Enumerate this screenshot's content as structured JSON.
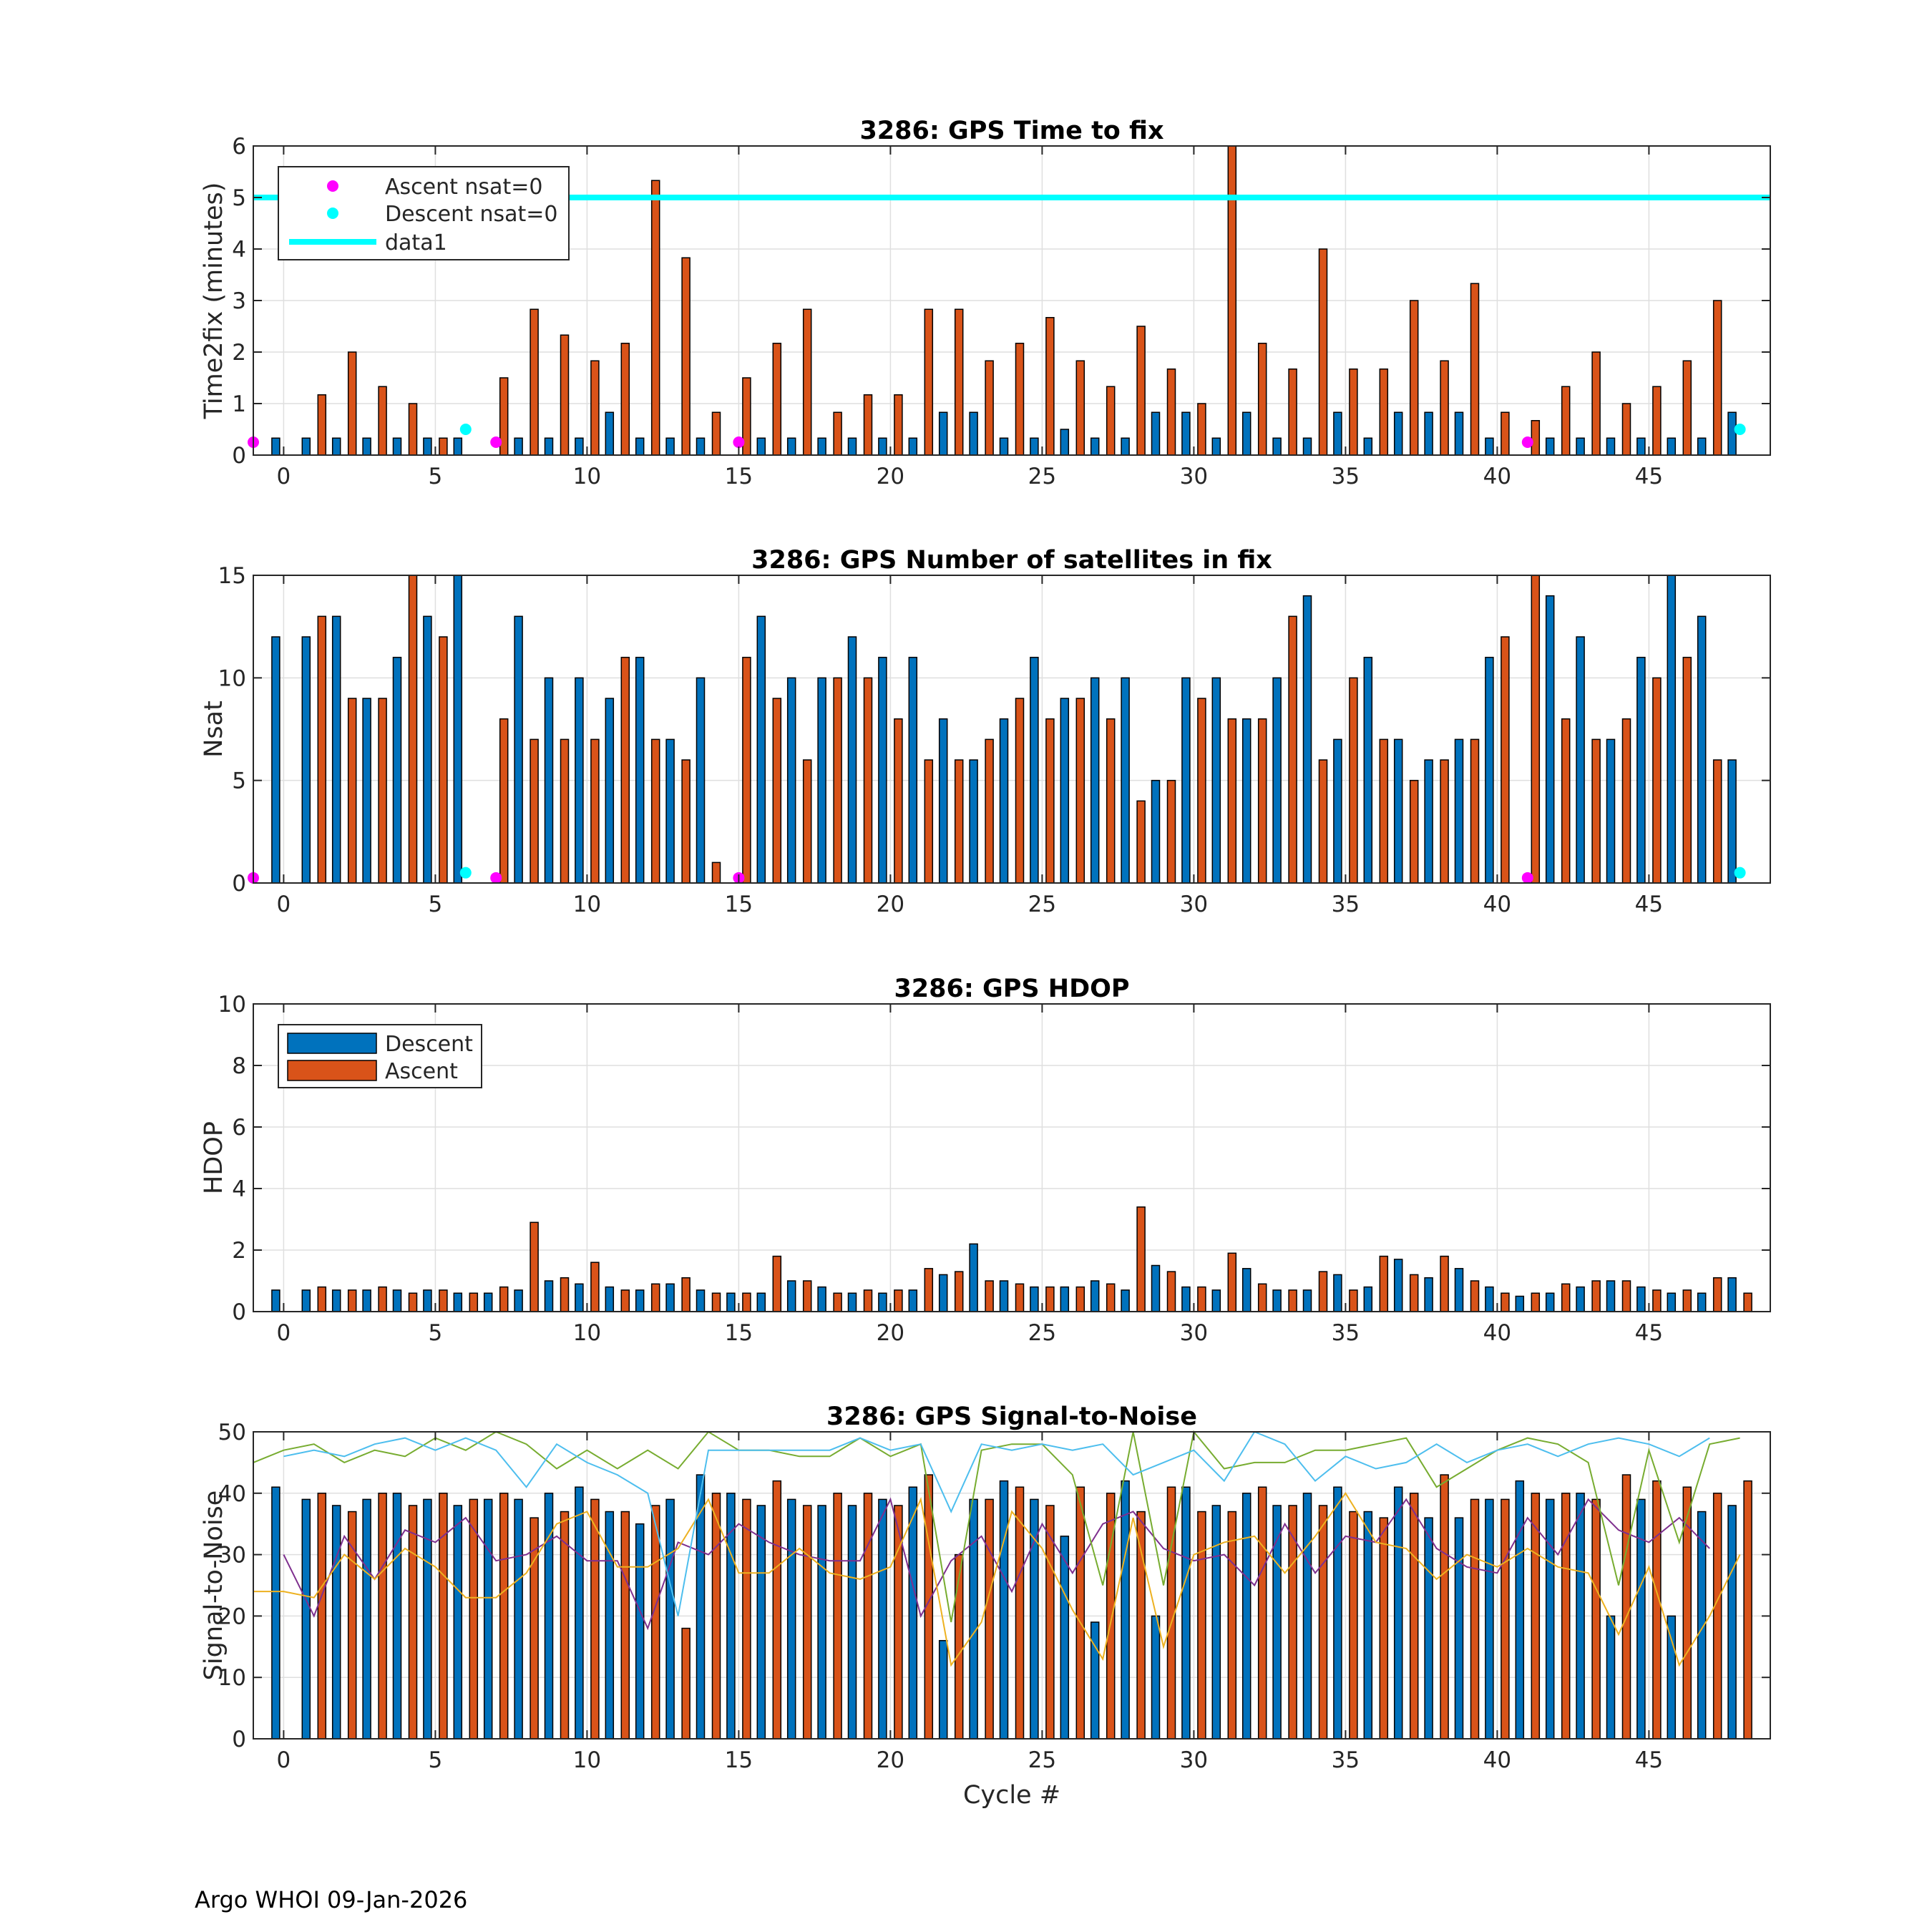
{
  "colors": {
    "descent": "#0072BD",
    "ascent": "#D95319",
    "ascent_marker": "#FF00FF",
    "descent_marker": "#00FFFF",
    "ref_line": "#00FFFF",
    "snr_series": [
      "#7E2F8E",
      "#EDB120",
      "#77AC30",
      "#4DBEEE"
    ]
  },
  "x_axis": {
    "xlim": [
      -1,
      49
    ],
    "ticks": [
      0,
      5,
      10,
      15,
      20,
      25,
      30,
      35,
      40,
      45
    ],
    "tick_labels": [
      "0",
      "5",
      "10",
      "15",
      "20",
      "25",
      "30",
      "35",
      "40",
      "45"
    ],
    "xlabel": "Cycle #"
  },
  "chart_data": [
    {
      "type": "bar",
      "title": "3286: GPS Time to fix",
      "ylabel": "Time2fix (minutes)",
      "ylim": [
        0,
        6
      ],
      "yticks": [
        0,
        1,
        2,
        3,
        4,
        5,
        6
      ],
      "ytick_labels": [
        "0",
        "1",
        "2",
        "3",
        "4",
        "5",
        "6"
      ],
      "series": [
        {
          "name": "Descent",
          "values": [
            0.33,
            0.33,
            0.33,
            0.33,
            0.33,
            0.33,
            0.33,
            null,
            0.33,
            0.33,
            0.33,
            0.83,
            0.33,
            0.33,
            0.33,
            null,
            0.33,
            0.33,
            0.33,
            0.33,
            0.33,
            0.33,
            0.83,
            0.83,
            0.33,
            0.33,
            0.5,
            0.33,
            0.33,
            0.83,
            0.83,
            0.33,
            0.83,
            0.33,
            0.33,
            0.83,
            0.33,
            0.83,
            0.83,
            0.83,
            0.33,
            null,
            0.33,
            0.33,
            0.33,
            0.33,
            0.33,
            0.33,
            0.83
          ]
        },
        {
          "name": "Ascent",
          "values": [
            null,
            1.17,
            2.0,
            1.33,
            1.0,
            0.33,
            null,
            1.5,
            2.83,
            2.33,
            1.83,
            2.17,
            5.33,
            3.83,
            0.83,
            1.5,
            2.17,
            2.83,
            0.83,
            1.17,
            1.17,
            2.83,
            2.83,
            1.83,
            2.17,
            2.67,
            1.83,
            1.33,
            2.5,
            1.67,
            1.0,
            6.0,
            2.17,
            1.67,
            4.0,
            1.67,
            1.67,
            3.0,
            1.83,
            3.33,
            0.83,
            0.67,
            1.33,
            2.0,
            1.0,
            1.33,
            1.83,
            3.0,
            null
          ]
        }
      ],
      "markers": [
        {
          "name": "Ascent nsat=0",
          "x": [
            -1,
            7,
            15,
            41
          ],
          "y": [
            0.25,
            0.25,
            0.25,
            0.25
          ]
        },
        {
          "name": "Descent nsat=0",
          "x": [
            6,
            48
          ],
          "y": [
            0.5,
            0.5
          ]
        }
      ],
      "hline": {
        "name": "data1",
        "y": 5
      },
      "legend": {
        "position": "top-left",
        "entries": [
          "Ascent nsat=0",
          "Descent nsat=0",
          "data1"
        ]
      }
    },
    {
      "type": "bar",
      "title": "3286: GPS Number of satellites in fix",
      "ylabel": "Nsat",
      "ylim": [
        0,
        15
      ],
      "yticks": [
        0,
        5,
        10,
        15
      ],
      "ytick_labels": [
        "0",
        "5",
        "10",
        "15"
      ],
      "series": [
        {
          "name": "Descent",
          "values": [
            12,
            12,
            13,
            9,
            11,
            13,
            15,
            null,
            13,
            10,
            10,
            9,
            11,
            7,
            10,
            null,
            13,
            10,
            10,
            12,
            11,
            11,
            8,
            6,
            8,
            11,
            9,
            10,
            10,
            5,
            10,
            10,
            8,
            10,
            14,
            7,
            11,
            7,
            6,
            7,
            11,
            null,
            14,
            12,
            7,
            11,
            15,
            13,
            6
          ]
        },
        {
          "name": "Ascent",
          "values": [
            null,
            13,
            9,
            9,
            15,
            12,
            null,
            8,
            7,
            7,
            7,
            11,
            7,
            6,
            1,
            11,
            9,
            6,
            10,
            10,
            8,
            6,
            6,
            7,
            9,
            8,
            9,
            8,
            4,
            5,
            9,
            8,
            8,
            13,
            6,
            10,
            7,
            5,
            6,
            7,
            12,
            15,
            8,
            7,
            8,
            10,
            11,
            6,
            null
          ]
        }
      ],
      "markers": [
        {
          "name": "Ascent nsat=0",
          "x": [
            -1,
            7,
            15,
            41
          ],
          "y": [
            0.25,
            0.25,
            0.25,
            0.25
          ]
        },
        {
          "name": "Descent nsat=0",
          "x": [
            6,
            48
          ],
          "y": [
            0.5,
            0.5
          ]
        }
      ]
    },
    {
      "type": "bar",
      "title": "3286: GPS HDOP",
      "ylabel": "HDOP",
      "ylim": [
        0,
        10
      ],
      "yticks": [
        0,
        2,
        4,
        6,
        8,
        10
      ],
      "ytick_labels": [
        "0",
        "2",
        "4",
        "6",
        "8",
        "10"
      ],
      "series": [
        {
          "name": "Descent",
          "values": [
            0.7,
            0.7,
            0.7,
            0.7,
            0.7,
            0.7,
            0.6,
            0.6,
            0.7,
            1.0,
            0.9,
            0.8,
            0.7,
            0.9,
            0.7,
            0.6,
            0.6,
            1.0,
            0.8,
            0.6,
            0.6,
            0.7,
            1.2,
            2.2,
            1.0,
            0.8,
            0.8,
            1.0,
            0.7,
            1.5,
            0.8,
            0.7,
            1.4,
            0.7,
            0.7,
            1.2,
            0.8,
            1.7,
            1.1,
            1.4,
            0.8,
            0.5,
            0.6,
            0.8,
            1.0,
            0.8,
            0.6,
            0.6,
            1.1
          ]
        },
        {
          "name": "Ascent",
          "values": [
            null,
            0.8,
            0.7,
            0.8,
            0.6,
            0.7,
            0.6,
            0.8,
            2.9,
            1.1,
            1.6,
            0.7,
            0.9,
            1.1,
            0.6,
            0.6,
            1.8,
            1.0,
            0.6,
            0.7,
            0.7,
            1.4,
            1.3,
            1.0,
            0.9,
            0.8,
            0.8,
            0.9,
            3.4,
            1.3,
            0.8,
            1.9,
            0.9,
            0.7,
            1.3,
            0.7,
            1.8,
            1.2,
            1.8,
            1.0,
            0.6,
            0.6,
            0.9,
            1.0,
            1.0,
            0.7,
            0.7,
            1.1,
            0.6
          ]
        }
      ],
      "legend": {
        "position": "top-left",
        "entries": [
          "Descent",
          "Ascent"
        ]
      }
    },
    {
      "type": "bar",
      "title": "3286: GPS Signal-to-Noise",
      "ylabel": "Signal-to-Noise",
      "xlabel": "Cycle #",
      "ylim": [
        0,
        50
      ],
      "yticks": [
        0,
        10,
        20,
        30,
        40,
        50
      ],
      "ytick_labels": [
        "0",
        "10",
        "20",
        "30",
        "40",
        "50"
      ],
      "series": [
        {
          "name": "Descent",
          "values": [
            41,
            39,
            38,
            39,
            40,
            39,
            38,
            39,
            39,
            40,
            41,
            37,
            35,
            39,
            43,
            40,
            38,
            39,
            38,
            38,
            39,
            41,
            16,
            39,
            42,
            39,
            33,
            19,
            42,
            20,
            41,
            38,
            40,
            38,
            40,
            41,
            37,
            41,
            36,
            36,
            39,
            42,
            39,
            40,
            20,
            39,
            20,
            37,
            38
          ]
        },
        {
          "name": "Ascent",
          "values": [
            null,
            40,
            37,
            40,
            38,
            40,
            39,
            40,
            36,
            37,
            39,
            37,
            38,
            18,
            40,
            39,
            42,
            38,
            40,
            40,
            38,
            43,
            30,
            39,
            41,
            38,
            41,
            40,
            37,
            41,
            37,
            37,
            41,
            38,
            38,
            37,
            36,
            40,
            43,
            39,
            39,
            40,
            40,
            39,
            43,
            42,
            41,
            40,
            42
          ]
        }
      ],
      "lines": [
        {
          "name": "snr-purple",
          "values": [
            null,
            30,
            20,
            33,
            26,
            34,
            32,
            36,
            29,
            30,
            33,
            29,
            29,
            18,
            32,
            30,
            35,
            32,
            30,
            29,
            29,
            39,
            20,
            29,
            33,
            24,
            35,
            27,
            35,
            37,
            31,
            29,
            30,
            25,
            35,
            27,
            33,
            32,
            39,
            31,
            28,
            27,
            36,
            30,
            39,
            34,
            32,
            36,
            31
          ]
        },
        {
          "name": "snr-yellow",
          "values": [
            24,
            24,
            23,
            30,
            26,
            31,
            28,
            23,
            23,
            27,
            35,
            37,
            28,
            28,
            31,
            39,
            27,
            27,
            31,
            27,
            26,
            28,
            39,
            12,
            19,
            37,
            31,
            21,
            13,
            36,
            15,
            30,
            32,
            33,
            27,
            33,
            40,
            32,
            31,
            26,
            30,
            28,
            31,
            28,
            27,
            17,
            28,
            12,
            20,
            30
          ]
        },
        {
          "name": "snr-green",
          "values": [
            45,
            47,
            48,
            45,
            47,
            46,
            49,
            47,
            51,
            48,
            44,
            47,
            44,
            47,
            44,
            50,
            47,
            47,
            46,
            46,
            49,
            46,
            48,
            19,
            47,
            48,
            48,
            43,
            25,
            50,
            25,
            50,
            44,
            45,
            45,
            47,
            47,
            48,
            49,
            41,
            44,
            47,
            49,
            48,
            45,
            25,
            47,
            32,
            48,
            49
          ]
        },
        {
          "name": "snr-blue",
          "values": [
            null,
            46,
            47,
            46,
            48,
            49,
            47,
            49,
            47,
            41,
            48,
            45,
            43,
            40,
            20,
            47,
            47,
            47,
            47,
            47,
            49,
            47,
            48,
            37,
            48,
            47,
            48,
            47,
            48,
            43,
            45,
            47,
            42,
            51,
            48,
            42,
            46,
            44,
            45,
            48,
            45,
            47,
            48,
            46,
            48,
            49,
            48,
            46,
            49
          ]
        }
      ]
    }
  ],
  "footer": "Argo WHOI 09-Jan-2026"
}
